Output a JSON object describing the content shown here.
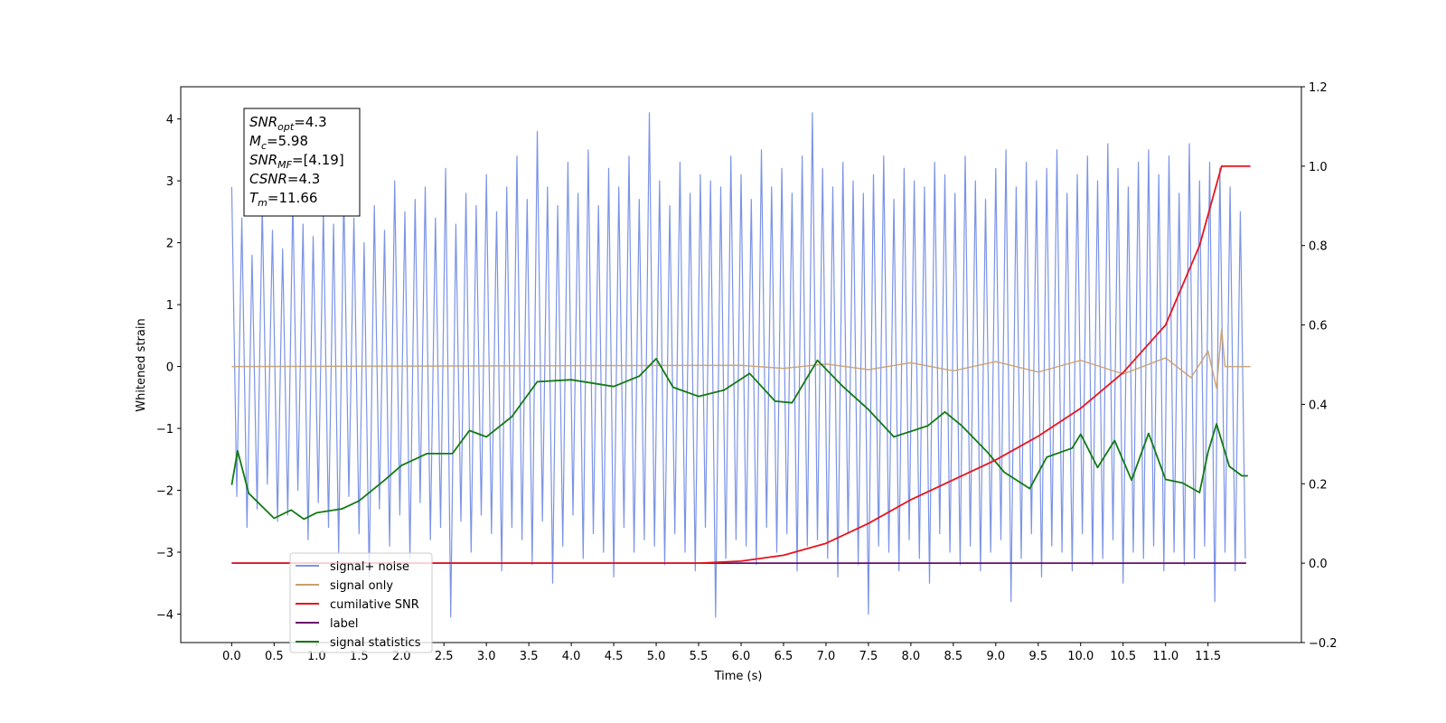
{
  "chart_data": {
    "type": "line",
    "xlabel": "Time (s)",
    "ylabel": "Whitened strain",
    "xlim": [
      -0.6,
      12.6
    ],
    "ylim": [
      -4.46,
      4.52
    ],
    "y2lim": [
      -0.2,
      1.2
    ],
    "xticks": [
      {
        "value": 0,
        "label": "0.0"
      },
      0.5,
      {
        "value": 1,
        "label": "1.0"
      },
      1.5,
      {
        "value": 2,
        "label": "2.0"
      },
      2.5,
      {
        "value": 3,
        "label": "3.0"
      },
      3.5,
      {
        "value": 4,
        "label": "4.0"
      },
      4.5,
      {
        "value": 5,
        "label": "5.0"
      },
      5.5,
      {
        "value": 6,
        "label": "6.0"
      },
      6.5,
      {
        "value": 7,
        "label": "7.0"
      },
      7.5,
      {
        "value": 8,
        "label": "8.0"
      },
      8.5,
      {
        "value": 9,
        "label": "9.0"
      },
      9.5,
      {
        "value": 10,
        "label": "10.0"
      },
      10.5,
      {
        "value": 11,
        "label": "11.0"
      },
      11.5
    ],
    "yticks": [
      {
        "value": -4,
        "label": "−4"
      },
      {
        "value": -3,
        "label": "−3"
      },
      {
        "value": -2,
        "label": "−2"
      },
      {
        "value": -1,
        "label": "−1"
      },
      0,
      1,
      2,
      3,
      4
    ],
    "y2ticks": [
      {
        "value": -0.2,
        "label": "−0.2"
      },
      {
        "value": 0,
        "label": "0.0"
      },
      0.2,
      0.4,
      0.6,
      0.8,
      {
        "value": 1,
        "label": "1.0"
      },
      1.2
    ],
    "grid": false,
    "legend": "lower left",
    "annotations": [
      {
        "main": "SNR",
        "sub": "opt",
        "rest": "=4.3"
      },
      {
        "main": "M",
        "sub": "c",
        "rest": "=5.98"
      },
      {
        "main": "SNR",
        "sub": "MF",
        "rest": "=[4.19]"
      },
      {
        "main": "CSNR",
        "rest": "=4.3"
      },
      {
        "main": "T",
        "sub": "m",
        "rest": "=11.66"
      }
    ],
    "series": [
      {
        "name": "signal+ noise",
        "color": "#7b93e8",
        "step": 0.06,
        "values": [
          2.9,
          -2.1,
          2.4,
          -2.6,
          1.8,
          -2.3,
          2.6,
          -1.9,
          2.2,
          -2.5,
          1.9,
          -2.4,
          2.7,
          -2.0,
          2.3,
          -2.8,
          2.1,
          -2.2,
          2.5,
          -2.6,
          2.3,
          -3.0,
          2.8,
          -2.1,
          2.4,
          -2.7,
          2.0,
          -3.4,
          2.6,
          -2.3,
          2.2,
          -2.9,
          3.0,
          -2.4,
          2.5,
          -3.1,
          2.7,
          -2.2,
          2.9,
          -2.8,
          2.4,
          -2.6,
          3.2,
          -4.05,
          2.3,
          -2.5,
          2.8,
          -3.0,
          2.6,
          -2.4,
          3.1,
          -2.7,
          2.5,
          -3.3,
          2.9,
          -2.6,
          3.4,
          -2.8,
          2.7,
          -3.2,
          3.8,
          -2.5,
          2.9,
          -3.5,
          2.6,
          -2.9,
          3.3,
          -2.4,
          2.8,
          -3.1,
          3.5,
          -2.7,
          2.6,
          -3.0,
          3.2,
          -3.4,
          2.9,
          -2.6,
          3.4,
          -3.0,
          2.7,
          -2.8,
          4.1,
          -2.9,
          3.0,
          -3.2,
          2.6,
          -2.7,
          3.3,
          -3.0,
          2.8,
          -3.3,
          3.1,
          -2.6,
          3.0,
          -4.05,
          2.9,
          -3.1,
          3.4,
          -2.8,
          3.1,
          -2.9,
          2.7,
          -3.2,
          3.5,
          -2.6,
          2.9,
          -3.0,
          3.2,
          -2.7,
          2.8,
          -3.3,
          3.4,
          -2.9,
          4.1,
          -2.8,
          3.2,
          -3.1,
          2.9,
          -3.4,
          3.3,
          -2.7,
          3.0,
          -3.2,
          2.8,
          -4.0,
          3.1,
          -2.9,
          3.4,
          -3.0,
          2.7,
          -3.3,
          3.2,
          -2.8,
          3.0,
          -3.1,
          2.9,
          -3.5,
          3.3,
          -2.7,
          3.1,
          -3.0,
          2.8,
          -3.2,
          3.4,
          -2.9,
          3.0,
          -3.3,
          2.7,
          -3.0,
          3.2,
          -2.8,
          3.5,
          -3.8,
          2.9,
          -3.1,
          3.3,
          -2.7,
          3.0,
          -3.4,
          3.2,
          -2.9,
          3.5,
          -3.0,
          2.8,
          -3.3,
          3.1,
          -2.7,
          3.4,
          -3.2,
          3.0,
          -3.1,
          3.6,
          -2.8,
          3.2,
          -3.5,
          2.9,
          -3.0,
          3.3,
          -3.1,
          3.5,
          -2.9,
          3.1,
          -3.3,
          3.4,
          -3.0,
          2.8,
          -3.2,
          3.6,
          -3.1,
          3.0,
          -2.9,
          3.3,
          -3.8,
          3.2,
          -3.0,
          2.9,
          -3.3,
          2.5,
          -3.1
        ]
      },
      {
        "name": "signal only",
        "color": "#c8a06e",
        "x": [
          0,
          6,
          6.5,
          7,
          7.5,
          8,
          8.5,
          9,
          9.5,
          10,
          10.5,
          11,
          11.3,
          11.5,
          11.6,
          11.66,
          11.7,
          12.0
        ],
        "values": [
          0,
          0.02,
          -0.03,
          0.04,
          -0.05,
          0.06,
          -0.07,
          0.08,
          -0.09,
          0.1,
          -0.12,
          0.14,
          -0.18,
          0.25,
          -0.35,
          0.6,
          0,
          0
        ]
      },
      {
        "name": "cumilative SNR",
        "color": "#e8141c",
        "axis": "y2",
        "x": [
          0,
          5.5,
          6,
          6.5,
          7,
          7.5,
          8,
          8.5,
          9,
          9.5,
          10,
          10.5,
          11,
          11.4,
          11.66,
          12.0
        ],
        "values": [
          0,
          0,
          0.005,
          0.02,
          0.05,
          0.1,
          0.16,
          0.21,
          0.26,
          0.32,
          0.39,
          0.48,
          0.6,
          0.8,
          1.0,
          1.0
        ]
      },
      {
        "name": "label",
        "color": "#6a0f6a",
        "axis": "y2",
        "x": [
          0,
          11.95
        ],
        "values": [
          0,
          0
        ]
      },
      {
        "name": "signal statistics",
        "color": "#137a13",
        "axis": "y2",
        "x": [
          0,
          0.07,
          0.2,
          0.5,
          0.7,
          0.85,
          1.0,
          1.3,
          1.5,
          1.8,
          2.0,
          2.3,
          2.6,
          2.8,
          3.0,
          3.3,
          3.6,
          4.0,
          4.5,
          4.8,
          5.0,
          5.2,
          5.5,
          5.8,
          6.1,
          6.4,
          6.6,
          6.9,
          7.2,
          7.5,
          7.8,
          8.2,
          8.4,
          8.6,
          8.9,
          9.1,
          9.4,
          9.6,
          9.9,
          10.0,
          10.2,
          10.4,
          10.6,
          10.8,
          11.0,
          11.2,
          11.4,
          11.5,
          11.6,
          11.75,
          11.9,
          11.97
        ],
        "values": [
          0.197,
          0.283,
          0.176,
          0.113,
          0.134,
          0.111,
          0.127,
          0.137,
          0.157,
          0.209,
          0.246,
          0.276,
          0.276,
          0.334,
          0.318,
          0.369,
          0.457,
          0.462,
          0.445,
          0.471,
          0.515,
          0.443,
          0.42,
          0.436,
          0.478,
          0.408,
          0.404,
          0.511,
          0.445,
          0.387,
          0.318,
          0.346,
          0.381,
          0.346,
          0.28,
          0.229,
          0.188,
          0.267,
          0.29,
          0.325,
          0.241,
          0.309,
          0.209,
          0.327,
          0.211,
          0.202,
          0.178,
          0.28,
          0.351,
          0.244,
          0.22,
          0.22
        ]
      }
    ]
  }
}
